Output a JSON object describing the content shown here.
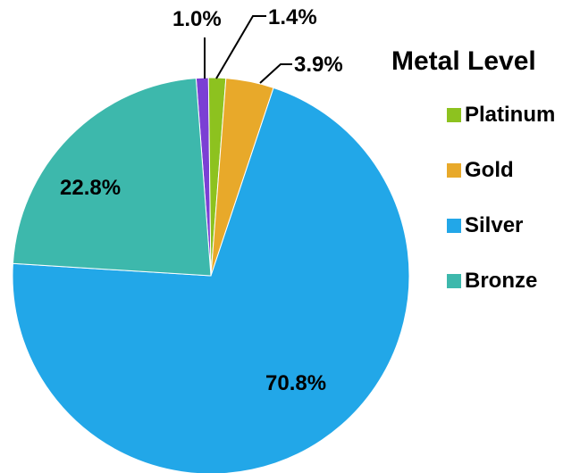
{
  "chart_data": {
    "type": "pie",
    "title": "Metal Level",
    "legend_position": "right",
    "slices": [
      {
        "label": "",
        "value": 1.0,
        "display": "1.0%",
        "color": "#7B3FD4"
      },
      {
        "label": "Platinum",
        "value": 1.4,
        "display": "1.4%",
        "color": "#8DC21F"
      },
      {
        "label": "Gold",
        "value": 3.9,
        "display": "3.9%",
        "color": "#E8A92A"
      },
      {
        "label": "Silver",
        "value": 70.8,
        "display": "70.8%",
        "color": "#22A7E8"
      },
      {
        "label": "Bronze",
        "value": 22.8,
        "display": "22.8%",
        "color": "#3DB8AC"
      }
    ]
  }
}
